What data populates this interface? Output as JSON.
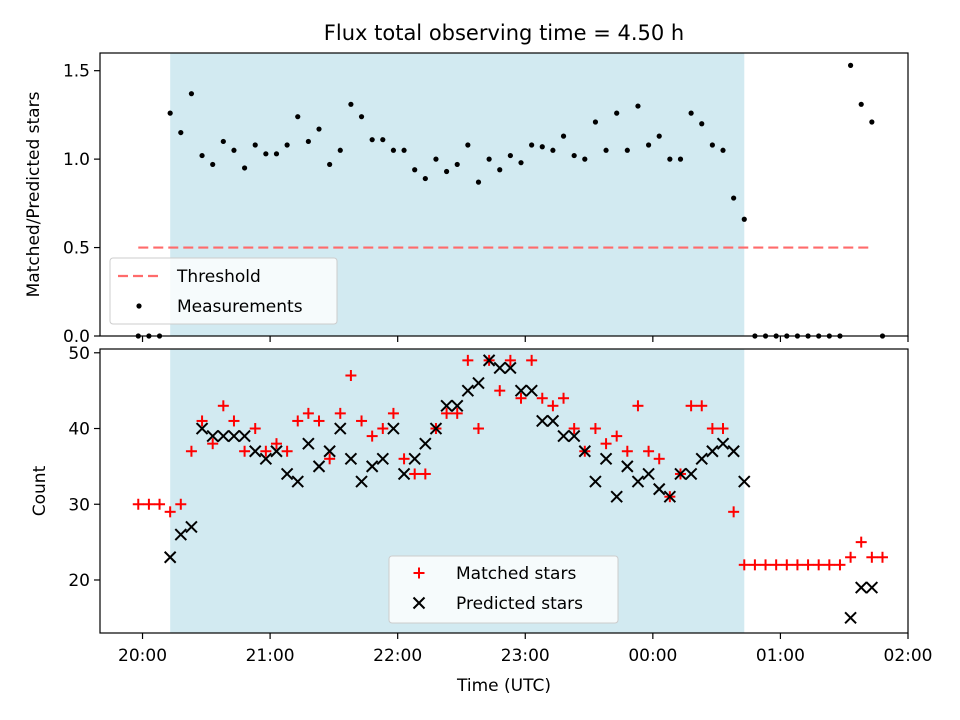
{
  "chart_data": [
    {
      "type": "scatter",
      "title": "Flux total observing time = 4.50 h",
      "xlabel": "",
      "ylabel": "Matched/Predicted stars",
      "ylim": [
        0,
        1.6
      ],
      "yticks": [
        "0.0",
        "0.5",
        "1.0",
        "1.5"
      ],
      "xlim": [
        "19:40",
        "02:00"
      ],
      "shaded_region": {
        "start": "20:13",
        "end": "00:43",
        "color": "#add8e6"
      },
      "threshold": {
        "name": "Threshold",
        "value": 0.5,
        "x_start": "19:58",
        "x_end": "01:43",
        "color": "#ff6b6b"
      },
      "legend": {
        "placement": "lower left",
        "entries": [
          "Threshold",
          "Measurements"
        ]
      },
      "series": [
        {
          "name": "Measurements",
          "color": "#000000",
          "points": [
            [
              "19:58",
              0.0
            ],
            [
              "20:03",
              0.0
            ],
            [
              "20:08",
              0.0
            ],
            [
              "20:13",
              1.26
            ],
            [
              "20:18",
              1.15
            ],
            [
              "20:23",
              1.37
            ],
            [
              "20:28",
              1.02
            ],
            [
              "20:33",
              0.97
            ],
            [
              "20:38",
              1.1
            ],
            [
              "20:43",
              1.05
            ],
            [
              "20:48",
              0.95
            ],
            [
              "20:53",
              1.08
            ],
            [
              "20:58",
              1.03
            ],
            [
              "21:03",
              1.03
            ],
            [
              "21:08",
              1.08
            ],
            [
              "21:13",
              1.24
            ],
            [
              "21:18",
              1.1
            ],
            [
              "21:23",
              1.17
            ],
            [
              "21:28",
              0.97
            ],
            [
              "21:33",
              1.05
            ],
            [
              "21:38",
              1.31
            ],
            [
              "21:43",
              1.24
            ],
            [
              "21:48",
              1.11
            ],
            [
              "21:53",
              1.11
            ],
            [
              "21:58",
              1.05
            ],
            [
              "22:03",
              1.05
            ],
            [
              "22:08",
              0.94
            ],
            [
              "22:13",
              0.89
            ],
            [
              "22:18",
              1.0
            ],
            [
              "22:23",
              0.93
            ],
            [
              "22:28",
              0.97
            ],
            [
              "22:33",
              1.08
            ],
            [
              "22:38",
              0.87
            ],
            [
              "22:43",
              1.0
            ],
            [
              "22:48",
              0.94
            ],
            [
              "22:53",
              1.02
            ],
            [
              "22:58",
              0.98
            ],
            [
              "23:03",
              1.08
            ],
            [
              "23:08",
              1.07
            ],
            [
              "23:13",
              1.05
            ],
            [
              "23:18",
              1.13
            ],
            [
              "23:23",
              1.02
            ],
            [
              "23:28",
              1.0
            ],
            [
              "23:33",
              1.21
            ],
            [
              "23:38",
              1.05
            ],
            [
              "23:43",
              1.26
            ],
            [
              "23:48",
              1.05
            ],
            [
              "23:53",
              1.3
            ],
            [
              "23:58",
              1.08
            ],
            [
              "00:03",
              1.13
            ],
            [
              "00:08",
              1.0
            ],
            [
              "00:13",
              1.0
            ],
            [
              "00:18",
              1.26
            ],
            [
              "00:23",
              1.2
            ],
            [
              "00:28",
              1.08
            ],
            [
              "00:33",
              1.05
            ],
            [
              "00:38",
              0.78
            ],
            [
              "00:43",
              0.66
            ],
            [
              "00:48",
              0.0
            ],
            [
              "00:53",
              0.0
            ],
            [
              "00:58",
              0.0
            ],
            [
              "01:03",
              0.0
            ],
            [
              "01:08",
              0.0
            ],
            [
              "01:13",
              0.0
            ],
            [
              "01:18",
              0.0
            ],
            [
              "01:23",
              0.0
            ],
            [
              "01:28",
              0.0
            ],
            [
              "01:33",
              1.53
            ],
            [
              "01:38",
              1.31
            ],
            [
              "01:43",
              1.21
            ],
            [
              "01:48",
              0.0
            ]
          ]
        }
      ]
    },
    {
      "type": "scatter",
      "title": "",
      "xlabel": "Time (UTC)",
      "ylabel": "Count",
      "ylim": [
        13,
        50.5
      ],
      "yticks": [
        "20",
        "30",
        "40",
        "50"
      ],
      "xlim": [
        "19:40",
        "02:00"
      ],
      "xticks": [
        "20:00",
        "21:00",
        "22:00",
        "23:00",
        "00:00",
        "01:00",
        "02:00"
      ],
      "shaded_region": {
        "start": "20:13",
        "end": "00:43",
        "color": "#add8e6"
      },
      "legend": {
        "placement": "lower center",
        "entries": [
          "Matched stars",
          "Predicted stars"
        ]
      },
      "series": [
        {
          "name": "Matched stars",
          "marker": "+",
          "color": "#ff0000",
          "points": [
            [
              "19:58",
              30
            ],
            [
              "20:03",
              30
            ],
            [
              "20:08",
              30
            ],
            [
              "20:13",
              29
            ],
            [
              "20:18",
              30
            ],
            [
              "20:23",
              37
            ],
            [
              "20:28",
              41
            ],
            [
              "20:33",
              38
            ],
            [
              "20:38",
              43
            ],
            [
              "20:43",
              41
            ],
            [
              "20:48",
              37
            ],
            [
              "20:53",
              40
            ],
            [
              "20:58",
              37
            ],
            [
              "21:03",
              38
            ],
            [
              "21:08",
              37
            ],
            [
              "21:13",
              41
            ],
            [
              "21:18",
              42
            ],
            [
              "21:23",
              41
            ],
            [
              "21:28",
              36
            ],
            [
              "21:33",
              42
            ],
            [
              "21:38",
              47
            ],
            [
              "21:43",
              41
            ],
            [
              "21:48",
              39
            ],
            [
              "21:53",
              40
            ],
            [
              "21:58",
              42
            ],
            [
              "22:03",
              36
            ],
            [
              "22:08",
              34
            ],
            [
              "22:13",
              34
            ],
            [
              "22:18",
              40
            ],
            [
              "22:23",
              42
            ],
            [
              "22:28",
              42
            ],
            [
              "22:33",
              49
            ],
            [
              "22:38",
              40
            ],
            [
              "22:43",
              49
            ],
            [
              "22:48",
              45
            ],
            [
              "22:53",
              49
            ],
            [
              "22:58",
              44
            ],
            [
              "23:03",
              49
            ],
            [
              "23:08",
              44
            ],
            [
              "23:13",
              43
            ],
            [
              "23:18",
              44
            ],
            [
              "23:23",
              40
            ],
            [
              "23:28",
              37
            ],
            [
              "23:33",
              40
            ],
            [
              "23:38",
              38
            ],
            [
              "23:43",
              39
            ],
            [
              "23:48",
              37
            ],
            [
              "23:53",
              43
            ],
            [
              "23:58",
              37
            ],
            [
              "00:03",
              36
            ],
            [
              "00:08",
              31
            ],
            [
              "00:13",
              34
            ],
            [
              "00:18",
              43
            ],
            [
              "00:23",
              43
            ],
            [
              "00:28",
              40
            ],
            [
              "00:33",
              40
            ],
            [
              "00:38",
              29
            ],
            [
              "00:43",
              22
            ],
            [
              "00:48",
              22
            ],
            [
              "00:53",
              22
            ],
            [
              "00:58",
              22
            ],
            [
              "01:03",
              22
            ],
            [
              "01:08",
              22
            ],
            [
              "01:13",
              22
            ],
            [
              "01:18",
              22
            ],
            [
              "01:23",
              22
            ],
            [
              "01:28",
              22
            ],
            [
              "01:33",
              23
            ],
            [
              "01:38",
              25
            ],
            [
              "01:43",
              23
            ],
            [
              "01:48",
              23
            ]
          ]
        },
        {
          "name": "Predicted stars",
          "marker": "x",
          "color": "#000000",
          "points": [
            [
              "20:13",
              23
            ],
            [
              "20:18",
              26
            ],
            [
              "20:23",
              27
            ],
            [
              "20:28",
              40
            ],
            [
              "20:33",
              39
            ],
            [
              "20:38",
              39
            ],
            [
              "20:43",
              39
            ],
            [
              "20:48",
              39
            ],
            [
              "20:53",
              37
            ],
            [
              "20:58",
              36
            ],
            [
              "21:03",
              37
            ],
            [
              "21:08",
              34
            ],
            [
              "21:13",
              33
            ],
            [
              "21:18",
              38
            ],
            [
              "21:23",
              35
            ],
            [
              "21:28",
              37
            ],
            [
              "21:33",
              40
            ],
            [
              "21:38",
              36
            ],
            [
              "21:43",
              33
            ],
            [
              "21:48",
              35
            ],
            [
              "21:53",
              36
            ],
            [
              "21:58",
              40
            ],
            [
              "22:03",
              34
            ],
            [
              "22:08",
              36
            ],
            [
              "22:13",
              38
            ],
            [
              "22:18",
              40
            ],
            [
              "22:23",
              43
            ],
            [
              "22:28",
              43
            ],
            [
              "22:33",
              45
            ],
            [
              "22:38",
              46
            ],
            [
              "22:43",
              49
            ],
            [
              "22:48",
              48
            ],
            [
              "22:53",
              48
            ],
            [
              "22:58",
              45
            ],
            [
              "23:03",
              45
            ],
            [
              "23:08",
              41
            ],
            [
              "23:13",
              41
            ],
            [
              "23:18",
              39
            ],
            [
              "23:23",
              39
            ],
            [
              "23:28",
              37
            ],
            [
              "23:33",
              33
            ],
            [
              "23:38",
              36
            ],
            [
              "23:43",
              31
            ],
            [
              "23:48",
              35
            ],
            [
              "23:53",
              33
            ],
            [
              "23:58",
              34
            ],
            [
              "00:03",
              32
            ],
            [
              "00:08",
              31
            ],
            [
              "00:13",
              34
            ],
            [
              "00:18",
              34
            ],
            [
              "00:23",
              36
            ],
            [
              "00:28",
              37
            ],
            [
              "00:33",
              38
            ],
            [
              "00:38",
              37
            ],
            [
              "00:43",
              33
            ],
            [
              "01:33",
              15
            ],
            [
              "01:38",
              19
            ],
            [
              "01:43",
              19
            ]
          ]
        }
      ]
    }
  ]
}
